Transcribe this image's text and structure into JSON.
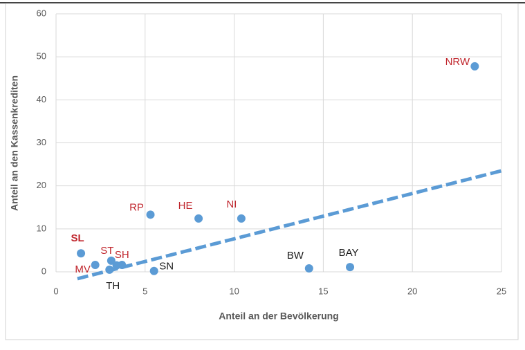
{
  "chart_data": {
    "type": "scatter",
    "x_label": "Anteil an der Bevölkerung",
    "y_label": "Anteil an den Kassenkrediten",
    "xlim": [
      0,
      25
    ],
    "xticks": [
      0,
      5,
      10,
      15,
      20,
      25
    ],
    "ylim": [
      0,
      60
    ],
    "yticks": [
      0,
      10,
      20,
      30,
      40,
      50,
      60
    ],
    "grid": true,
    "series": [
      {
        "color": "#5b9bd5",
        "x": [
          1.4,
          2.2,
          3.1,
          3.4,
          3.7,
          3.0,
          5.5,
          5.3,
          8.0,
          10.4,
          14.2,
          16.5,
          23.5
        ],
        "values": [
          4.3,
          1.6,
          2.6,
          1.5,
          1.6,
          0.5,
          0.2,
          13.3,
          12.4,
          12.4,
          0.8,
          1.1,
          47.8
        ],
        "labels": [
          "SL",
          "MV",
          "ST",
          null,
          "SH",
          "TH",
          "SN",
          "RP",
          "HE",
          "NI",
          "BW",
          "BAY",
          "NRW"
        ],
        "label_colors": [
          "#c0262d",
          "#c0262d",
          "#c0262d",
          null,
          "#c0262d",
          "#1a1a1a",
          "#1a1a1a",
          "#c0262d",
          "#c0262d",
          "#c0262d",
          "#1a1a1a",
          "#1a1a1a",
          "#c0262d"
        ],
        "label_bold": [
          true,
          false,
          false,
          false,
          false,
          false,
          false,
          false,
          false,
          false,
          false,
          false,
          false
        ]
      }
    ],
    "trendline": {
      "x": [
        1.2,
        25
      ],
      "values": [
        -1.6,
        23.5
      ],
      "color": "#5b9bd5",
      "dashed": true
    }
  }
}
